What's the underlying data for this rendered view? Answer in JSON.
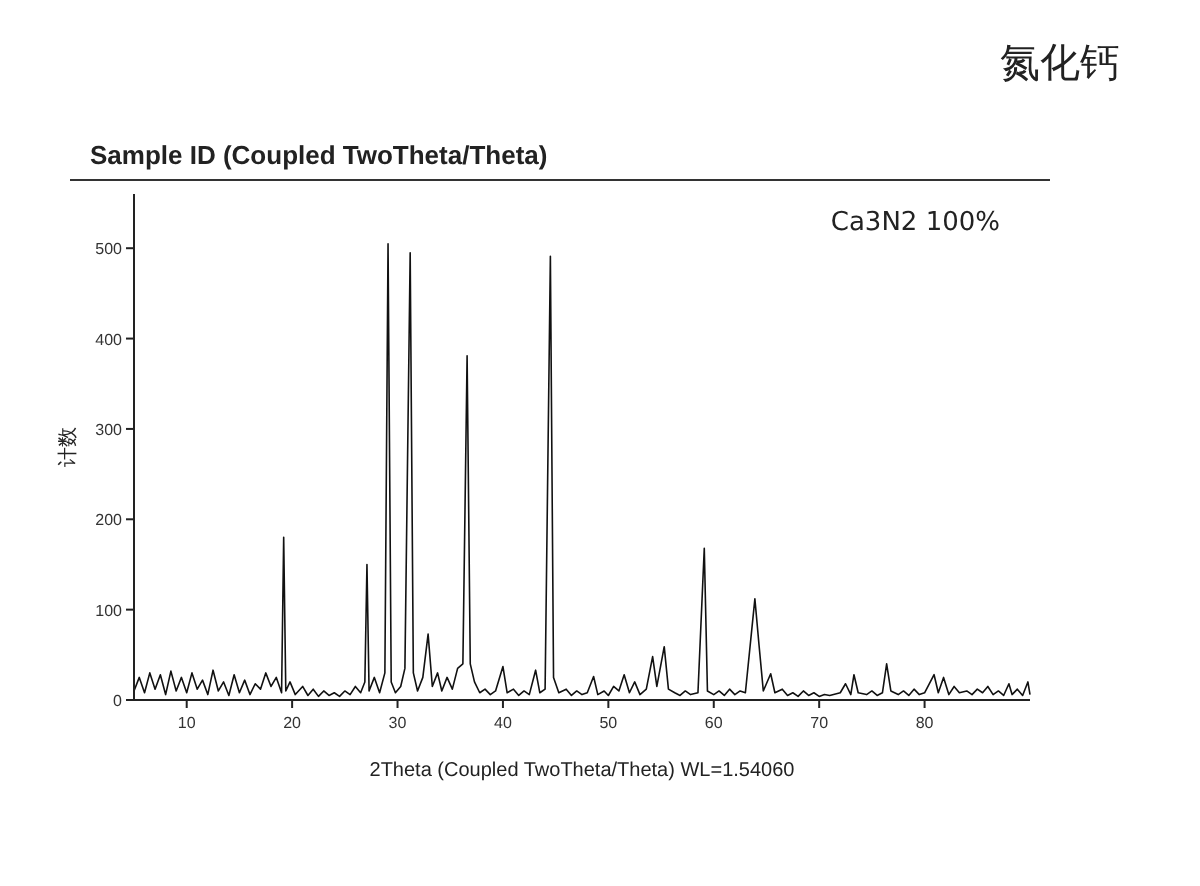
{
  "chart_data": {
    "type": "line",
    "title": "Sample ID (Coupled TwoTheta/Theta)",
    "xlabel": "2Theta (Coupled TwoTheta/Theta) WL=1.54060",
    "ylabel": "计数",
    "annotations": [
      "Ca3N2  100%",
      "氮化钙"
    ],
    "xlim": [
      5,
      90
    ],
    "xticks": [
      10,
      20,
      30,
      40,
      50,
      60,
      70,
      80
    ],
    "ylim": [
      0,
      560
    ],
    "yticks": [
      0,
      100,
      200,
      300,
      400,
      500
    ],
    "grid": false,
    "marker": "none",
    "line_style": "solid",
    "series": [
      {
        "color": "#111111",
        "x": [
          5,
          5.5,
          6,
          6.5,
          7,
          7.5,
          8,
          8.5,
          9,
          9.5,
          10,
          10.5,
          11,
          11.5,
          12,
          12.5,
          13,
          13.5,
          14,
          14.5,
          15,
          15.5,
          16,
          16.5,
          17,
          17.5,
          18,
          18.5,
          19,
          19.2,
          19.4,
          19.8,
          20.3,
          21,
          21.5,
          22,
          22.5,
          23,
          23.5,
          24,
          24.5,
          25,
          25.5,
          26,
          26.5,
          26.9,
          27.1,
          27.3,
          27.8,
          28.3,
          28.8,
          29.1,
          29.4,
          29.8,
          30.3,
          30.7,
          31.2,
          31.5,
          31.9,
          32.4,
          32.9,
          33.3,
          33.8,
          34.2,
          34.7,
          35.2,
          35.7,
          36.2,
          36.6,
          36.9,
          37.3,
          37.8,
          38.3,
          38.8,
          39.3,
          40,
          40.4,
          41,
          41.5,
          42,
          42.5,
          43.1,
          43.5,
          44,
          44.5,
          44.8,
          45.3,
          46,
          46.5,
          47,
          47.5,
          48,
          48.6,
          49,
          49.6,
          50,
          50.5,
          51,
          51.5,
          52,
          52.5,
          53,
          53.6,
          54.2,
          54.6,
          55.3,
          55.7,
          56.3,
          56.8,
          57.3,
          57.8,
          58.5,
          59.1,
          59.4,
          60,
          60.5,
          61,
          61.5,
          62,
          62.5,
          63,
          63.9,
          64.3,
          64.7,
          65.4,
          65.8,
          66.5,
          67,
          67.5,
          68,
          68.5,
          69,
          69.5,
          70,
          70.5,
          71,
          72,
          72.5,
          73,
          73.3,
          73.7,
          74.5,
          75,
          75.5,
          76,
          76.4,
          76.8,
          77.5,
          78,
          78.5,
          79,
          79.5,
          80,
          80.9,
          81.3,
          81.8,
          82.3,
          82.8,
          83.3,
          84,
          84.5,
          85,
          85.5,
          86,
          86.5,
          87,
          87.5,
          88,
          88.3,
          88.8,
          89.3,
          89.8,
          90
        ],
        "values": [
          10,
          25,
          8,
          30,
          12,
          28,
          6,
          32,
          10,
          25,
          8,
          30,
          12,
          22,
          6,
          33,
          10,
          20,
          5,
          28,
          8,
          22,
          6,
          18,
          12,
          30,
          15,
          25,
          8,
          180,
          10,
          20,
          6,
          15,
          5,
          12,
          4,
          10,
          5,
          8,
          4,
          10,
          6,
          15,
          8,
          20,
          150,
          10,
          25,
          8,
          30,
          505,
          20,
          8,
          15,
          35,
          495,
          30,
          10,
          25,
          73,
          15,
          30,
          10,
          25,
          12,
          35,
          40,
          381,
          40,
          20,
          8,
          12,
          6,
          10,
          37,
          8,
          12,
          5,
          10,
          6,
          33,
          8,
          12,
          491,
          25,
          8,
          12,
          5,
          10,
          6,
          8,
          26,
          6,
          10,
          5,
          15,
          10,
          28,
          8,
          20,
          6,
          12,
          48,
          15,
          59,
          12,
          8,
          5,
          10,
          6,
          8,
          168,
          10,
          6,
          10,
          5,
          12,
          6,
          10,
          8,
          112,
          60,
          10,
          29,
          8,
          12,
          5,
          8,
          4,
          10,
          5,
          8,
          4,
          6,
          5,
          8,
          18,
          6,
          28,
          8,
          6,
          10,
          5,
          8,
          40,
          10,
          6,
          10,
          5,
          12,
          6,
          8,
          28,
          8,
          25,
          6,
          15,
          8,
          10,
          6,
          12,
          8,
          15,
          6,
          10,
          5,
          18,
          6,
          12,
          5,
          20,
          6
        ]
      }
    ]
  }
}
